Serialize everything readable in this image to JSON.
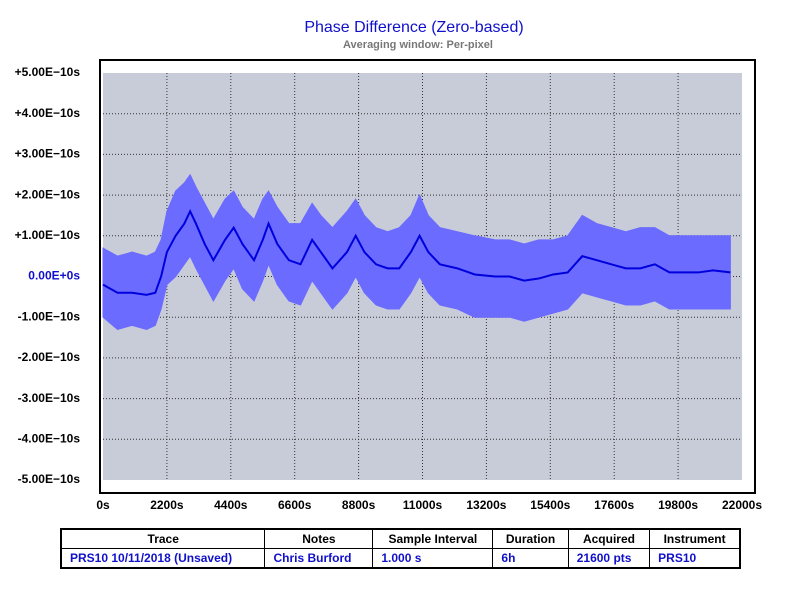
{
  "chart_data": {
    "type": "line",
    "title": "Phase Difference (Zero-based)",
    "subtitle": "Averaging window: Per-pixel",
    "x": [
      0,
      500,
      1000,
      1500,
      1800,
      2000,
      2200,
      2500,
      2800,
      3000,
      3200,
      3500,
      3800,
      4200,
      4500,
      4800,
      5200,
      5500,
      5700,
      6000,
      6400,
      6800,
      7200,
      7500,
      7900,
      8400,
      8700,
      9000,
      9400,
      9800,
      10200,
      10600,
      10900,
      11200,
      11600,
      12200,
      12800,
      13500,
      14000,
      14500,
      15000,
      15500,
      16000,
      16500,
      17000,
      17500,
      18000,
      18500,
      19000,
      19500,
      20000,
      20500,
      21000,
      21600
    ],
    "series": [
      {
        "color": "#6b6bff",
        "values": [
          7e-11,
          5e-11,
          6e-11,
          5e-11,
          6e-11,
          9e-11,
          1.6e-10,
          2.1e-10,
          2.3e-10,
          2.5e-10,
          2.2e-10,
          1.8e-10,
          1.4e-10,
          1.9e-10,
          2.1e-10,
          1.7e-10,
          1.4e-10,
          1.9e-10,
          2.1e-10,
          1.7e-10,
          1.3e-10,
          1.3e-10,
          1.8e-10,
          1.5e-10,
          1.2e-10,
          1.6e-10,
          1.9e-10,
          1.5e-10,
          1.2e-10,
          1.1e-10,
          1.2e-10,
          1.5e-10,
          2e-10,
          1.5e-10,
          1.2e-10,
          1.1e-10,
          1e-10,
          9e-11,
          9e-11,
          8e-11,
          9e-11,
          9e-11,
          1e-10,
          1.5e-10,
          1.3e-10,
          1.2e-10,
          1.1e-10,
          1.2e-10,
          1.2e-10,
          1e-10,
          1e-10,
          1e-10,
          1e-10,
          1e-10
        ],
        "lower": [
          -1e-10,
          -1.3e-10,
          -1.2e-10,
          -1.3e-10,
          -1.2e-10,
          -8e-11,
          -2e-11,
          0.0,
          3e-11,
          5e-11,
          2e-11,
          -2e-11,
          -6e-11,
          -1e-11,
          2e-11,
          -3e-11,
          -6e-11,
          -1e-11,
          3e-11,
          -2e-11,
          -6e-11,
          -7e-11,
          -1e-11,
          -4e-11,
          -8e-11,
          -4e-11,
          0.0,
          -4e-11,
          -7e-11,
          -8e-11,
          -8e-11,
          -4e-11,
          0.0,
          -4e-11,
          -7e-11,
          -8e-11,
          -1e-10,
          -1e-10,
          -1e-10,
          -1.1e-10,
          -1e-10,
          -9e-11,
          -8e-11,
          -4e-11,
          -5e-11,
          -6e-11,
          -7e-11,
          -7e-11,
          -6e-11,
          -8e-11,
          -8e-11,
          -8e-11,
          -8e-11,
          -8e-11
        ]
      },
      {
        "color": "#0000dd",
        "values": [
          -2e-11,
          -4e-11,
          -4e-11,
          -4.5e-11,
          -4e-11,
          0.0,
          6e-11,
          1e-10,
          1.3e-10,
          1.6e-10,
          1.3e-10,
          8e-11,
          4e-11,
          9e-11,
          1.2e-10,
          8e-11,
          4e-11,
          9e-11,
          1.3e-10,
          8e-11,
          4e-11,
          3e-11,
          9e-11,
          6e-11,
          2e-11,
          6e-11,
          1e-10,
          6e-11,
          3e-11,
          2e-11,
          2e-11,
          6e-11,
          1e-10,
          6e-11,
          3e-11,
          2e-11,
          5e-12,
          0.0,
          0.0,
          -1e-11,
          -5e-12,
          5e-12,
          1e-11,
          5e-11,
          4e-11,
          3e-11,
          2e-11,
          2e-11,
          3e-11,
          1e-11,
          1e-11,
          1e-11,
          1.5e-11,
          1e-11
        ]
      }
    ],
    "xlim": [
      0,
      22000
    ],
    "xticks": [
      {
        "value": 0,
        "label": "0s"
      },
      {
        "value": 2200,
        "label": "2200s"
      },
      {
        "value": 4400,
        "label": "4400s"
      },
      {
        "value": 6600,
        "label": "6600s"
      },
      {
        "value": 8800,
        "label": "8800s"
      },
      {
        "value": 11000,
        "label": "11000s"
      },
      {
        "value": 13200,
        "label": "13200s"
      },
      {
        "value": 15400,
        "label": "15400s"
      },
      {
        "value": 17600,
        "label": "17600s"
      },
      {
        "value": 19800,
        "label": "19800s"
      },
      {
        "value": 22000,
        "label": "22000s"
      }
    ],
    "ylim": [
      -5e-10,
      5e-10
    ],
    "yticks": [
      {
        "value": 5e-10,
        "label": "+5.00E−10s"
      },
      {
        "value": 4e-10,
        "label": "+4.00E−10s"
      },
      {
        "value": 3e-10,
        "label": "+3.00E−10s"
      },
      {
        "value": 2e-10,
        "label": "+2.00E−10s"
      },
      {
        "value": 1e-10,
        "label": "+1.00E−10s"
      },
      {
        "value": 0,
        "label": "0.00E+0s"
      },
      {
        "value": -1e-10,
        "label": "-1.00E−10s"
      },
      {
        "value": -2e-10,
        "label": "-2.00E−10s"
      },
      {
        "value": -3e-10,
        "label": "-3.00E−10s"
      },
      {
        "value": -4e-10,
        "label": "-4.00E−10s"
      },
      {
        "value": -5e-10,
        "label": "-5.00E−10s"
      }
    ],
    "grid": true
  },
  "table": {
    "columns": [
      "Trace",
      "Notes",
      "Sample Interval",
      "Duration",
      "Acquired",
      "Instrument"
    ],
    "rows": [
      [
        "PRS10 10/11/2018 (Unsaved)",
        "Chris Burford",
        "1.000 s",
        "6h",
        "21600 pts",
        "PRS10"
      ]
    ]
  }
}
